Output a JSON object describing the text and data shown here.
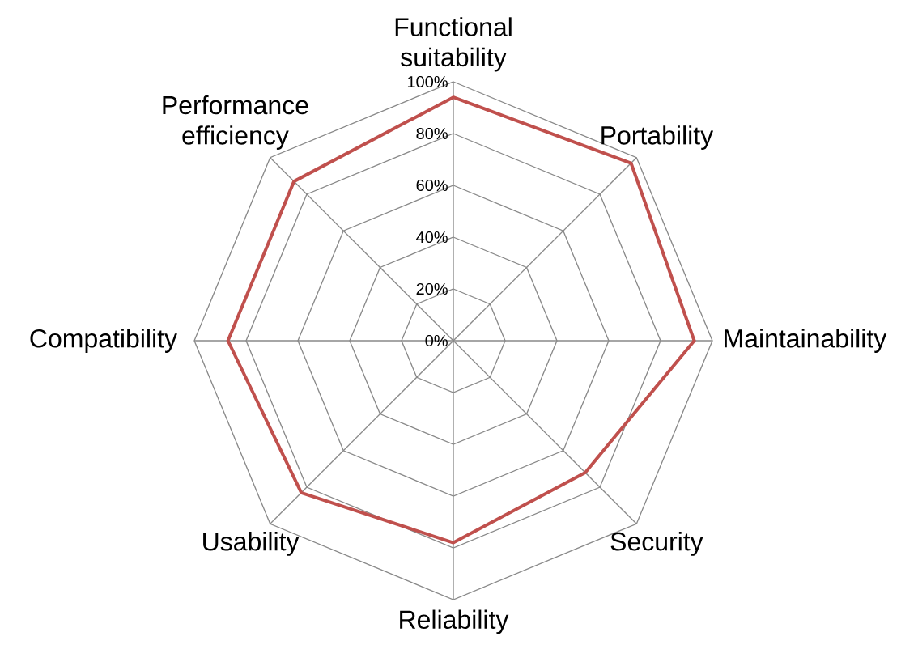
{
  "chart_data": {
    "type": "radar",
    "categories": [
      "Functional suitability",
      "Portability",
      "Maintainability",
      "Security",
      "Reliability",
      "Usability",
      "Compatibility",
      "Performance efficiency"
    ],
    "series": [
      {
        "color": "#c0504d",
        "values": [
          94,
          97,
          93,
          72,
          78,
          83,
          87,
          87
        ]
      }
    ],
    "ylim": [
      0,
      100
    ],
    "yticks": [
      {
        "value": 0,
        "label": "0%"
      },
      {
        "value": 20,
        "label": "20%"
      },
      {
        "value": 40,
        "label": "40%"
      },
      {
        "value": 60,
        "label": "60%"
      },
      {
        "value": 80,
        "label": "80%"
      },
      {
        "value": 100,
        "label": "100%"
      }
    ],
    "grid": true
  }
}
